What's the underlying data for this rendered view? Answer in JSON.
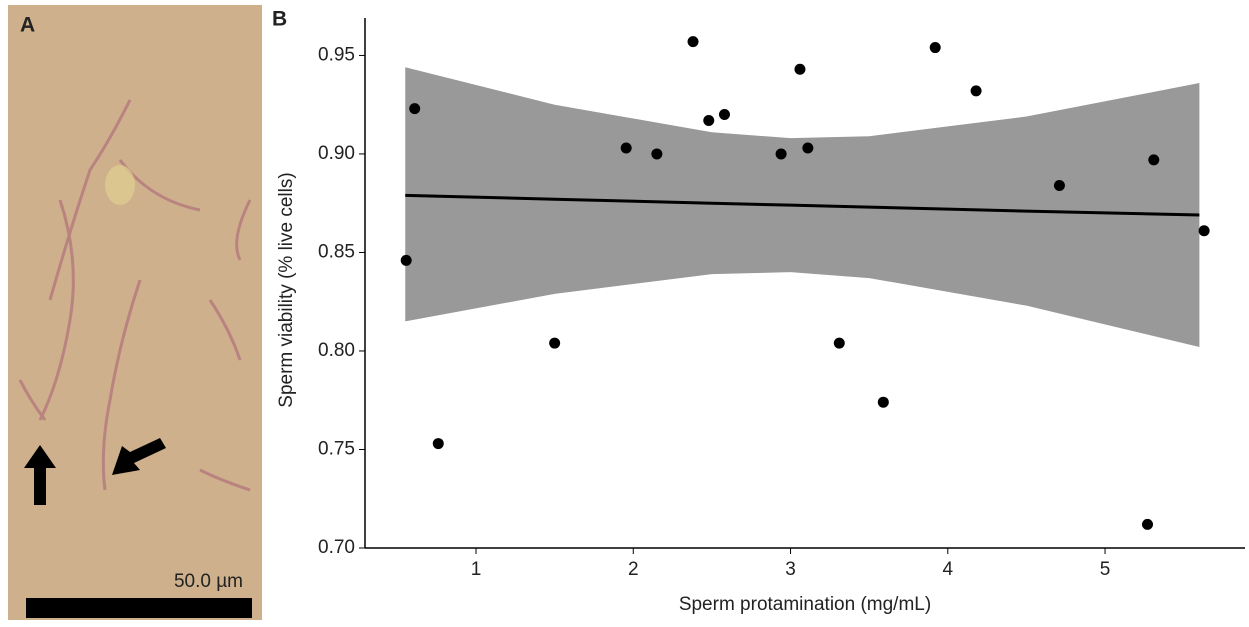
{
  "panel_a": {
    "label": "A",
    "scale_bar_label": "50.0 µm"
  },
  "chart_data": {
    "type": "scatter",
    "panel_label": "B",
    "x_label": "Sperm protamination (mg/mL)",
    "y_label": "Sperm viability (% live cells)",
    "x": [
      0.556,
      0.61,
      0.76,
      1.5,
      1.955,
      2.15,
      2.38,
      2.48,
      2.58,
      2.94,
      3.06,
      3.11,
      3.31,
      3.59,
      3.92,
      4.18,
      4.71,
      5.31,
      5.27,
      5.63
    ],
    "values": [
      0.846,
      0.923,
      0.753,
      0.804,
      0.903,
      0.9,
      0.957,
      0.917,
      0.92,
      0.9,
      0.943,
      0.903,
      0.804,
      0.774,
      0.954,
      0.932,
      0.884,
      0.897,
      0.712,
      0.861
    ],
    "color": "#000000",
    "fit": {
      "x": [
        0.55,
        1.5,
        2.5,
        3,
        3.5,
        4.5,
        5.6
      ],
      "values": [
        0.879,
        0.877,
        0.875,
        0.874,
        0.873,
        0.871,
        0.869
      ],
      "lower": [
        0.815,
        0.829,
        0.839,
        0.84,
        0.837,
        0.823,
        0.802
      ],
      "upper": [
        0.944,
        0.925,
        0.911,
        0.908,
        0.909,
        0.919,
        0.936
      ],
      "color": "#000000",
      "band_color": "#999999"
    },
    "xlim": [
      0.294,
      5.89
    ],
    "ylim": [
      0.7,
      0.969
    ],
    "xticks": [
      1,
      2,
      3,
      4,
      5
    ],
    "yticks": [
      {
        "value": 0.7,
        "label": "0.70"
      },
      {
        "value": 0.75,
        "label": "0.75"
      },
      {
        "value": 0.8,
        "label": "0.80"
      },
      {
        "value": 0.85,
        "label": "0.85"
      },
      {
        "value": 0.9,
        "label": "0.90"
      },
      {
        "value": 0.95,
        "label": "0.95"
      }
    ],
    "grid": false
  }
}
